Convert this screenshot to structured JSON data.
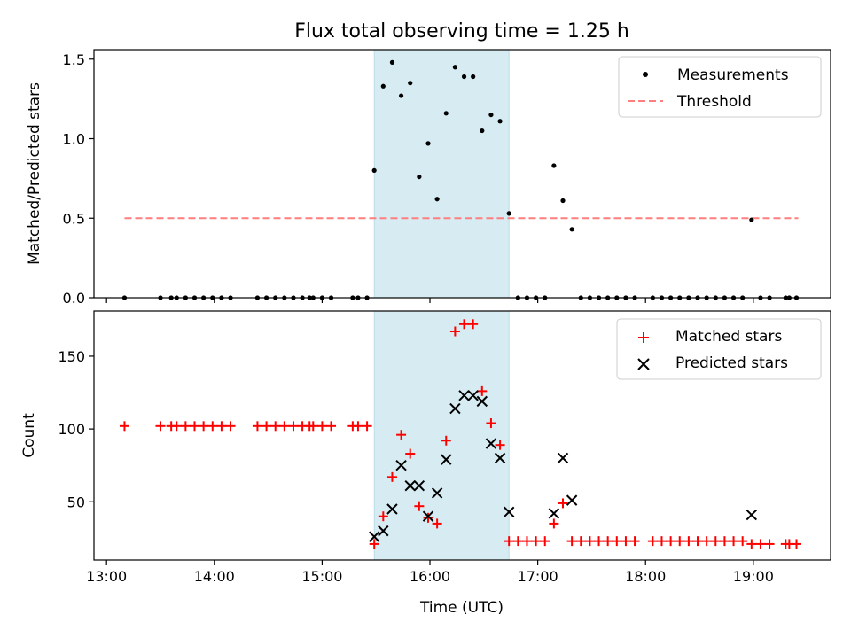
{
  "figure": {
    "title": "Flux total observing time = 1.25 h"
  },
  "colors": {
    "measurement": "#000000",
    "threshold": "#ff7f7f",
    "matched": "#ff0000",
    "predicted": "#000000",
    "span": "#add8e6"
  },
  "chart_data": [
    {
      "type": "scatter",
      "ylabel": "Matched/Predicted stars",
      "xlabel": "",
      "xlim": [
        "12:53",
        "19:43"
      ],
      "ylim": [
        0,
        1.56
      ],
      "x_tick_labels": [],
      "y_tick_labels": [
        "0.0",
        "0.5",
        "1.0",
        "1.5"
      ],
      "shaded_span": [
        "15:29",
        "16:44"
      ],
      "legend_position": "upper-right",
      "series": [
        {
          "name": "Measurements",
          "marker": "dot",
          "points": [
            [
              "13:10",
              0
            ],
            [
              "13:30",
              0
            ],
            [
              "13:36",
              0
            ],
            [
              "13:39",
              0
            ],
            [
              "13:44",
              0
            ],
            [
              "13:49",
              0
            ],
            [
              "13:54",
              0
            ],
            [
              "13:59",
              0
            ],
            [
              "14:04",
              0
            ],
            [
              "14:09",
              0
            ],
            [
              "14:24",
              0
            ],
            [
              "14:29",
              0
            ],
            [
              "14:34",
              0
            ],
            [
              "14:39",
              0
            ],
            [
              "14:44",
              0
            ],
            [
              "14:49",
              0
            ],
            [
              "14:53",
              0
            ],
            [
              "14:55",
              0
            ],
            [
              "15:00",
              0
            ],
            [
              "15:05",
              0
            ],
            [
              "15:17",
              0
            ],
            [
              "15:20",
              0
            ],
            [
              "15:25",
              0
            ],
            [
              "15:29",
              0.8
            ],
            [
              "15:34",
              1.33
            ],
            [
              "15:39",
              1.48
            ],
            [
              "15:44",
              1.27
            ],
            [
              "15:49",
              1.35
            ],
            [
              "15:54",
              0.76
            ],
            [
              "15:59",
              0.97
            ],
            [
              "16:04",
              0.62
            ],
            [
              "16:09",
              1.16
            ],
            [
              "16:14",
              1.45
            ],
            [
              "16:19",
              1.39
            ],
            [
              "16:24",
              1.39
            ],
            [
              "16:29",
              1.05
            ],
            [
              "16:34",
              1.15
            ],
            [
              "16:39",
              1.11
            ],
            [
              "16:44",
              0.53
            ],
            [
              "16:49",
              0
            ],
            [
              "16:54",
              0
            ],
            [
              "16:59",
              0
            ],
            [
              "17:04",
              0
            ],
            [
              "17:09",
              0.83
            ],
            [
              "17:14",
              0.61
            ],
            [
              "17:19",
              0.43
            ],
            [
              "17:24",
              0
            ],
            [
              "17:29",
              0
            ],
            [
              "17:34",
              0
            ],
            [
              "17:39",
              0
            ],
            [
              "17:44",
              0
            ],
            [
              "17:49",
              0
            ],
            [
              "17:54",
              0
            ],
            [
              "18:04",
              0
            ],
            [
              "18:09",
              0
            ],
            [
              "18:14",
              0
            ],
            [
              "18:19",
              0
            ],
            [
              "18:24",
              0
            ],
            [
              "18:29",
              0
            ],
            [
              "18:34",
              0
            ],
            [
              "18:39",
              0
            ],
            [
              "18:44",
              0
            ],
            [
              "18:49",
              0
            ],
            [
              "18:54",
              0
            ],
            [
              "18:59",
              0.49
            ],
            [
              "19:04",
              0
            ],
            [
              "19:09",
              0
            ],
            [
              "19:18",
              0
            ],
            [
              "19:20",
              0
            ],
            [
              "19:24",
              0
            ]
          ]
        },
        {
          "name": "Threshold",
          "marker": "dashed-line",
          "points": [
            [
              "13:10",
              0.5
            ],
            [
              "19:25",
              0.5
            ]
          ]
        }
      ]
    },
    {
      "type": "scatter",
      "ylabel": "Count",
      "xlabel": "Time (UTC)",
      "xlim": [
        "12:53",
        "19:43"
      ],
      "ylim": [
        10,
        181
      ],
      "x_tick_labels": [
        "13:00",
        "14:00",
        "15:00",
        "16:00",
        "17:00",
        "18:00",
        "19:00"
      ],
      "y_tick_labels": [
        "50",
        "100",
        "150"
      ],
      "shaded_span": [
        "15:29",
        "16:44"
      ],
      "legend_position": "upper-right",
      "series": [
        {
          "name": "Matched stars",
          "marker": "plus",
          "points": [
            [
              "13:10",
              102
            ],
            [
              "13:30",
              102
            ],
            [
              "13:36",
              102
            ],
            [
              "13:39",
              102
            ],
            [
              "13:44",
              102
            ],
            [
              "13:49",
              102
            ],
            [
              "13:54",
              102
            ],
            [
              "13:59",
              102
            ],
            [
              "14:04",
              102
            ],
            [
              "14:09",
              102
            ],
            [
              "14:24",
              102
            ],
            [
              "14:29",
              102
            ],
            [
              "14:34",
              102
            ],
            [
              "14:39",
              102
            ],
            [
              "14:44",
              102
            ],
            [
              "14:49",
              102
            ],
            [
              "14:53",
              102
            ],
            [
              "14:55",
              102
            ],
            [
              "15:00",
              102
            ],
            [
              "15:05",
              102
            ],
            [
              "15:17",
              102
            ],
            [
              "15:20",
              102
            ],
            [
              "15:25",
              102
            ],
            [
              "15:29",
              21
            ],
            [
              "15:34",
              40
            ],
            [
              "15:39",
              67
            ],
            [
              "15:44",
              96
            ],
            [
              "15:49",
              83
            ],
            [
              "15:54",
              47
            ],
            [
              "15:59",
              39
            ],
            [
              "16:04",
              35
            ],
            [
              "16:09",
              92
            ],
            [
              "16:14",
              167
            ],
            [
              "16:19",
              172
            ],
            [
              "16:24",
              172
            ],
            [
              "16:29",
              126
            ],
            [
              "16:34",
              104
            ],
            [
              "16:39",
              89
            ],
            [
              "16:44",
              23
            ],
            [
              "16:49",
              23
            ],
            [
              "16:54",
              23
            ],
            [
              "16:59",
              23
            ],
            [
              "17:04",
              23
            ],
            [
              "17:09",
              35
            ],
            [
              "17:14",
              49
            ],
            [
              "17:19",
              23
            ],
            [
              "17:24",
              23
            ],
            [
              "17:29",
              23
            ],
            [
              "17:34",
              23
            ],
            [
              "17:39",
              23
            ],
            [
              "17:44",
              23
            ],
            [
              "17:49",
              23
            ],
            [
              "17:54",
              23
            ],
            [
              "18:04",
              23
            ],
            [
              "18:09",
              23
            ],
            [
              "18:14",
              23
            ],
            [
              "18:19",
              23
            ],
            [
              "18:24",
              23
            ],
            [
              "18:29",
              23
            ],
            [
              "18:34",
              23
            ],
            [
              "18:39",
              23
            ],
            [
              "18:44",
              23
            ],
            [
              "18:49",
              23
            ],
            [
              "18:54",
              23
            ],
            [
              "18:59",
              21
            ],
            [
              "19:04",
              21
            ],
            [
              "19:09",
              21
            ],
            [
              "19:18",
              21
            ],
            [
              "19:20",
              21
            ],
            [
              "19:24",
              21
            ]
          ]
        },
        {
          "name": "Predicted stars",
          "marker": "x",
          "points": [
            [
              "15:29",
              26
            ],
            [
              "15:34",
              30
            ],
            [
              "15:39",
              45
            ],
            [
              "15:44",
              75
            ],
            [
              "15:49",
              61
            ],
            [
              "15:54",
              61
            ],
            [
              "15:59",
              40
            ],
            [
              "16:04",
              56
            ],
            [
              "16:09",
              79
            ],
            [
              "16:14",
              114
            ],
            [
              "16:19",
              123
            ],
            [
              "16:24",
              123
            ],
            [
              "16:29",
              119
            ],
            [
              "16:34",
              90
            ],
            [
              "16:39",
              80
            ],
            [
              "16:44",
              43
            ],
            [
              "17:09",
              42
            ],
            [
              "17:14",
              80
            ],
            [
              "17:19",
              51
            ],
            [
              "18:59",
              41
            ]
          ]
        }
      ]
    }
  ]
}
